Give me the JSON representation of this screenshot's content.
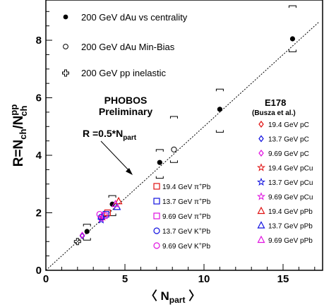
{
  "chart_data": {
    "type": "scatter",
    "xlabel_pre": "〈 N",
    "xlabel_sub": "part",
    "xlabel_post": " 〉",
    "ylabel_main": "R=N",
    "ylabel_sub1": "ch",
    "ylabel_mid": "/N",
    "ylabel_sup": "pp",
    "ylabel_sub2": "ch",
    "xlim": [
      0,
      17.5
    ],
    "ylim": [
      0,
      9.4
    ],
    "xticks": [
      0,
      5,
      10,
      15
    ],
    "yticks": [
      0,
      2,
      4,
      6,
      8
    ],
    "annotation_main": "PHOBOS",
    "annotation_sub": "Preliminary",
    "fit_label_pre": "R =0.5*N",
    "fit_label_sub": "part",
    "fit_line": {
      "slope": 0.5,
      "intercept": 0
    },
    "e178_title": "E178",
    "e178_subtitle": "(Busza et al.)",
    "phobos_legend": [
      {
        "label": "200 GeV dAu vs centrality",
        "marker": "filled-circle"
      },
      {
        "label": "200 GeV dAu  Min-Bias",
        "marker": "open-circle"
      },
      {
        "label": "200 GeV pp inelastic",
        "marker": "open-cross"
      }
    ],
    "series": [
      {
        "name": "200 GeV dAu vs centrality",
        "marker": "filled-circle",
        "color": "#000000",
        "x": [
          2.6,
          4.2,
          7.2,
          11.0,
          15.6
        ],
        "y": [
          1.35,
          2.3,
          3.75,
          5.6,
          8.05
        ]
      },
      {
        "name": "200 GeV dAu  Min-Bias",
        "marker": "open-circle",
        "color": "#000000",
        "x": [
          8.1
        ],
        "y": [
          4.2
        ]
      },
      {
        "name": "200 GeV pp inelastic",
        "marker": "open-cross",
        "color": "#000000",
        "x": [
          2.0
        ],
        "y": [
          1.0
        ]
      },
      {
        "name": "19.4 GeV pC",
        "marker": "diamond",
        "color": "#e01010",
        "x": [
          2.3
        ],
        "y": [
          1.2
        ]
      },
      {
        "name": "13.7 GeV pC",
        "marker": "diamond",
        "color": "#1010e0",
        "x": [
          2.3
        ],
        "y": [
          1.2
        ]
      },
      {
        "name": "9.69 GeV pC",
        "marker": "diamond",
        "color": "#e010e0",
        "x": [
          2.3
        ],
        "y": [
          1.22
        ]
      },
      {
        "name": "19.4 GeV pCu",
        "marker": "star",
        "color": "#e01010",
        "x": [
          3.6
        ],
        "y": [
          1.85
        ]
      },
      {
        "name": "13.7 GeV pCu",
        "marker": "star",
        "color": "#1010e0",
        "x": [
          3.5
        ],
        "y": [
          1.75
        ]
      },
      {
        "name": "9.69 GeV pCu",
        "marker": "star",
        "color": "#e010e0",
        "x": [
          3.5
        ],
        "y": [
          1.8
        ]
      },
      {
        "name": "19.4 GeV pPb",
        "marker": "triangle",
        "color": "#e01010",
        "x": [
          4.6
        ],
        "y": [
          2.4
        ]
      },
      {
        "name": "13.7 GeV pPb",
        "marker": "triangle",
        "color": "#1010e0",
        "x": [
          4.5
        ],
        "y": [
          2.2
        ]
      },
      {
        "name": "9.69 GeV pPb",
        "marker": "triangle",
        "color": "#e010e0",
        "x": [
          4.4
        ],
        "y": [
          2.3
        ]
      },
      {
        "name": "19.4 GeV π+Pb",
        "marker": "square",
        "color": "#e01010",
        "x": [
          3.9
        ],
        "y": [
          2.0
        ]
      },
      {
        "name": "13.7 GeV π+Pb",
        "marker": "square",
        "color": "#1010e0",
        "x": [
          3.8
        ],
        "y": [
          1.95
        ]
      },
      {
        "name": "9.69 GeV π+Pb",
        "marker": "square",
        "color": "#e010e0",
        "x": [
          3.7
        ],
        "y": [
          1.9
        ]
      },
      {
        "name": "13.7 GeV K+Pb",
        "marker": "circle",
        "color": "#1010e0",
        "x": [
          3.5
        ],
        "y": [
          1.85
        ]
      },
      {
        "name": "9.69 GeV K+Pb",
        "marker": "circle",
        "color": "#e010e0",
        "x": [
          3.4
        ],
        "y": [
          1.95
        ]
      }
    ],
    "error_brackets": [
      {
        "x": 2.6,
        "lo": 1.05,
        "hi": 1.6
      },
      {
        "x": 4.2,
        "lo": 1.9,
        "hi": 2.6
      },
      {
        "x": 7.2,
        "lo": 3.2,
        "hi": 4.2
      },
      {
        "x": 8.1,
        "lo": 3.75,
        "hi": 5.35
      },
      {
        "x": 11.0,
        "lo": 4.8,
        "hi": 6.3
      },
      {
        "x": 15.6,
        "lo": 7.6,
        "hi": 9.2
      }
    ],
    "beam_legend": [
      {
        "energy": "19.4 GeV",
        "particle": "π",
        "charge": "+",
        "target": "Pb",
        "marker": "square",
        "color": "#e01010"
      },
      {
        "energy": "13.7 GeV",
        "particle": "π",
        "charge": "+",
        "target": "Pb",
        "marker": "square",
        "color": "#1010e0"
      },
      {
        "energy": "9.69 GeV",
        "particle": "π",
        "charge": "+",
        "target": "Pb",
        "marker": "square",
        "color": "#e010e0"
      },
      {
        "energy": "13.7 GeV",
        "particle": "K",
        "charge": "+",
        "target": "Pb",
        "marker": "circle",
        "color": "#1010e0"
      },
      {
        "energy": "9.69 GeV",
        "particle": "K",
        "charge": "+",
        "target": "Pb",
        "marker": "circle",
        "color": "#e010e0"
      }
    ],
    "e178_legend": [
      {
        "label": "19.4 GeV pC",
        "marker": "diamond",
        "color": "#e01010"
      },
      {
        "label": "13.7 GeV pC",
        "marker": "diamond",
        "color": "#1010e0"
      },
      {
        "label": "9.69 GeV pC",
        "marker": "diamond",
        "color": "#e010e0"
      },
      {
        "label": "19.4 GeV pCu",
        "marker": "star",
        "color": "#e01010"
      },
      {
        "label": "13.7 GeV pCu",
        "marker": "star",
        "color": "#1010e0"
      },
      {
        "label": "9.69 GeV pCu",
        "marker": "star",
        "color": "#e010e0"
      },
      {
        "label": "19.4 GeV pPb",
        "marker": "triangle",
        "color": "#e01010"
      },
      {
        "label": "13.7 GeV pPb",
        "marker": "triangle",
        "color": "#1010e0"
      },
      {
        "label": "9.69 GeV pPb",
        "marker": "triangle",
        "color": "#e010e0"
      }
    ]
  }
}
